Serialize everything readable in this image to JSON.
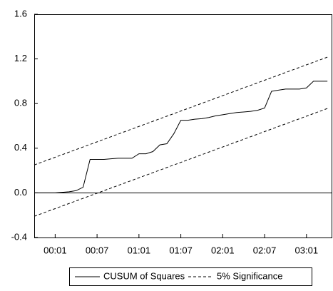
{
  "chart_data": {
    "type": "line",
    "categories": [
      null,
      null,
      null,
      "00:01",
      null,
      null,
      null,
      null,
      null,
      "00:07",
      null,
      null,
      null,
      null,
      null,
      "01:01",
      null,
      null,
      null,
      null,
      null,
      "01:07",
      null,
      null,
      null,
      null,
      null,
      "02:01",
      null,
      null,
      null,
      null,
      null,
      "02:07",
      null,
      null,
      null,
      null,
      null,
      "03:01",
      null,
      null,
      null
    ],
    "ylim": [
      -0.4,
      1.6
    ],
    "yticks": [
      -0.4,
      {
        "value": 0,
        "label": "0.0"
      },
      0.4,
      0.8,
      1.2,
      1.6
    ],
    "reference_line": 0,
    "legend": "bottom",
    "series": [
      {
        "name": "CUSUM of Squares",
        "color": "#000000",
        "dash": false,
        "values": [
          0,
          0,
          0,
          0,
          0.005,
          0.01,
          0.02,
          0.05,
          0.3,
          0.3,
          0.3,
          0.305,
          0.31,
          0.31,
          0.31,
          0.35,
          0.35,
          0.37,
          0.43,
          0.44,
          0.53,
          0.65,
          0.65,
          0.66,
          0.665,
          0.675,
          0.69,
          0.7,
          0.71,
          0.72,
          0.725,
          0.73,
          0.74,
          0.76,
          0.91,
          0.92,
          0.93,
          0.93,
          0.93,
          0.94,
          1.0,
          1.0,
          1.0
        ]
      },
      {
        "name": "5% Significance",
        "color": "#000000",
        "dash": true,
        "upper": [
          0.25,
          0.273,
          0.296,
          0.319,
          0.342,
          0.365,
          0.388,
          0.411,
          0.434,
          0.457,
          0.48,
          0.503,
          0.526,
          0.549,
          0.572,
          0.595,
          0.618,
          0.641,
          0.664,
          0.687,
          0.71,
          0.733,
          0.756,
          0.779,
          0.802,
          0.825,
          0.848,
          0.871,
          0.894,
          0.917,
          0.94,
          0.963,
          0.986,
          1.009,
          1.032,
          1.055,
          1.078,
          1.101,
          1.124,
          1.147,
          1.17,
          1.193,
          1.216
        ],
        "lower": [
          -0.21,
          -0.187,
          -0.164,
          -0.141,
          -0.118,
          -0.095,
          -0.072,
          -0.049,
          -0.026,
          -0.003,
          0.02,
          0.043,
          0.066,
          0.089,
          0.112,
          0.135,
          0.158,
          0.181,
          0.204,
          0.227,
          0.25,
          0.273,
          0.296,
          0.319,
          0.342,
          0.365,
          0.388,
          0.411,
          0.434,
          0.457,
          0.48,
          0.503,
          0.526,
          0.549,
          0.572,
          0.595,
          0.618,
          0.641,
          0.664,
          0.687,
          0.71,
          0.733,
          0.756
        ]
      }
    ]
  }
}
